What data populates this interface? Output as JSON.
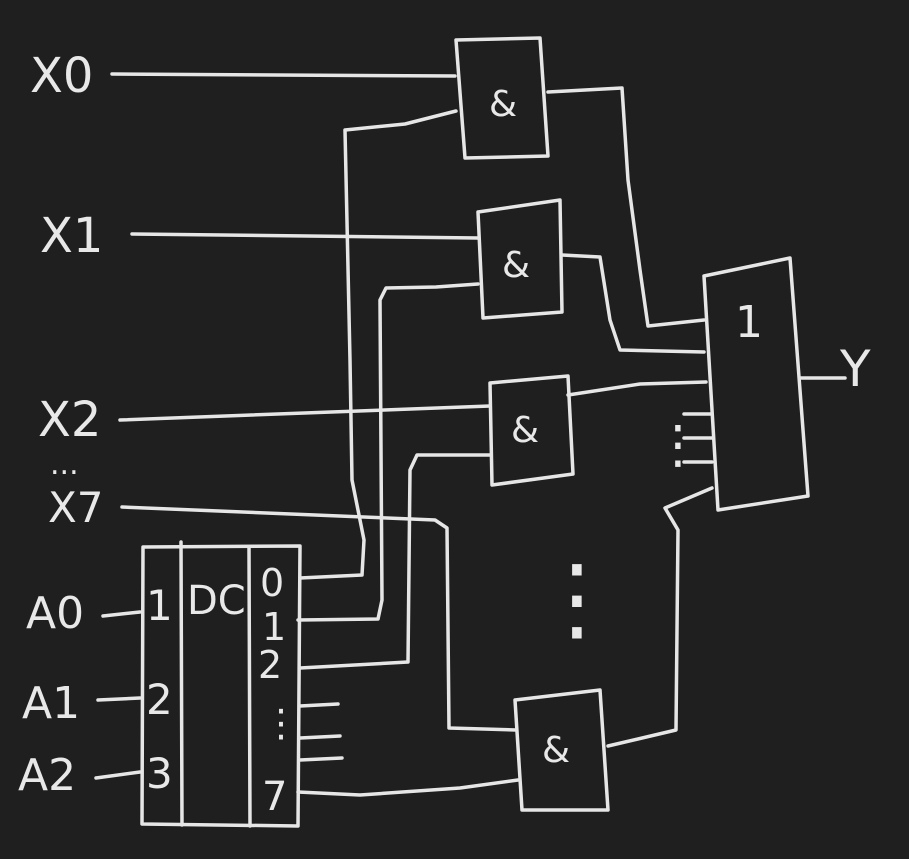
{
  "diagram": {
    "inputs": [
      "X0",
      "X1",
      "X2",
      "X7"
    ],
    "ellipsis_inputs": "...",
    "address_inputs": [
      "A0",
      "A1",
      "A2"
    ],
    "decoder": {
      "label": "DC",
      "input_pins": [
        "1",
        "2",
        "3"
      ],
      "output_pins": [
        "0",
        "1",
        "2",
        "7"
      ],
      "dots_vertical": "⋮"
    },
    "and_gates": [
      "&",
      "&",
      "&",
      "&"
    ],
    "and_gates_dots": "⋮",
    "or_gate": {
      "label": "1"
    },
    "or_inputs_dots": "⋮",
    "output": "Y",
    "colors": {
      "background": "#1f1f1f",
      "stroke": "#e6e6e6"
    }
  }
}
